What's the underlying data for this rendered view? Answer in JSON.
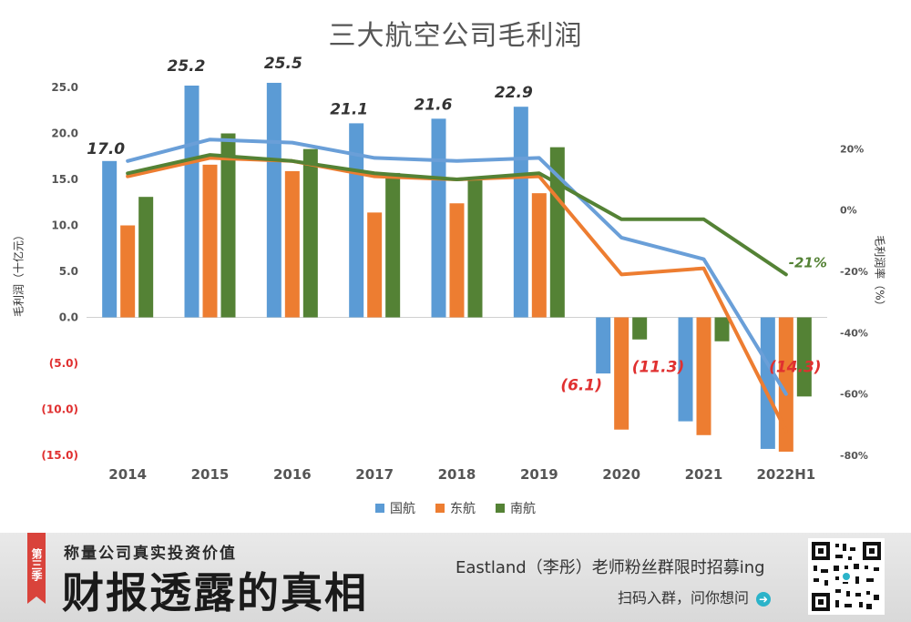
{
  "chart_data": {
    "type": "bar",
    "title": "三大航空公司毛利润",
    "categories": [
      "2014",
      "2015",
      "2016",
      "2017",
      "2018",
      "2019",
      "2020",
      "2021",
      "2022H1"
    ],
    "ylabel": "毛利润（十亿元）",
    "y2label": "毛利润率（%）",
    "ylim": [
      -15,
      25
    ],
    "y2lim": [
      -80,
      40
    ],
    "y_ticks": [
      "25.0",
      "20.0",
      "15.0",
      "10.0",
      "5.0",
      "0.0",
      "(5.0)",
      "(10.0)",
      "(15.0)"
    ],
    "y2_ticks": [
      "20%",
      "0%",
      "-20%",
      "-40%",
      "-60%",
      "-80%"
    ],
    "series": [
      {
        "name": "国航",
        "color": "#5b9bd5",
        "values": [
          17.0,
          25.2,
          25.5,
          21.1,
          21.6,
          22.9,
          -6.1,
          -11.3,
          -14.3
        ]
      },
      {
        "name": "东航",
        "color": "#ed7d31",
        "values": [
          10.0,
          16.6,
          15.9,
          11.4,
          12.4,
          13.5,
          -12.2,
          -12.8,
          -14.6
        ]
      },
      {
        "name": "南航",
        "color": "#548235",
        "values": [
          13.1,
          20.0,
          18.3,
          15.7,
          14.9,
          18.5,
          -2.4,
          -2.6,
          -8.6
        ]
      }
    ],
    "margin_series": [
      {
        "name": "国航",
        "color": "#6a9fd8",
        "values": [
          16,
          23,
          22,
          17,
          16,
          17,
          -9,
          -16,
          -60
        ]
      },
      {
        "name": "东航",
        "color": "#ed7d31",
        "values": [
          11,
          17,
          16,
          11,
          10,
          11,
          -21,
          -19,
          -72
        ]
      },
      {
        "name": "南航",
        "color": "#548235",
        "values": [
          12,
          18,
          16,
          12,
          10,
          12,
          -3,
          -3,
          -21
        ]
      }
    ],
    "data_labels": [
      {
        "index": 0,
        "text": "17.0",
        "color": "#333333"
      },
      {
        "index": 1,
        "text": "25.2",
        "color": "#333333"
      },
      {
        "index": 2,
        "text": "25.5",
        "color": "#333333"
      },
      {
        "index": 3,
        "text": "21.1",
        "color": "#333333"
      },
      {
        "index": 4,
        "text": "21.6",
        "color": "#333333"
      },
      {
        "index": 5,
        "text": "22.9",
        "color": "#333333"
      },
      {
        "index": 6,
        "text": "(6.1)",
        "color": "#e03030"
      },
      {
        "index": 7,
        "text": "(11.3)",
        "color": "#e03030"
      },
      {
        "index": 8,
        "text": "(14.3)",
        "color": "#e03030"
      }
    ],
    "margin_label": {
      "index": 8,
      "text": "-21%",
      "color": "#548235"
    },
    "legend_position": "bottom"
  },
  "banner": {
    "season": "第三季",
    "subtitle": "称量公司真实投资价值",
    "main_title": "财报透露的真相",
    "line1": "Eastland（李彤）老师粉丝群限时招募ing",
    "line2": "扫码入群，问你想问"
  },
  "icons": [
    "arrow-right-icon",
    "qr-code-icon"
  ]
}
